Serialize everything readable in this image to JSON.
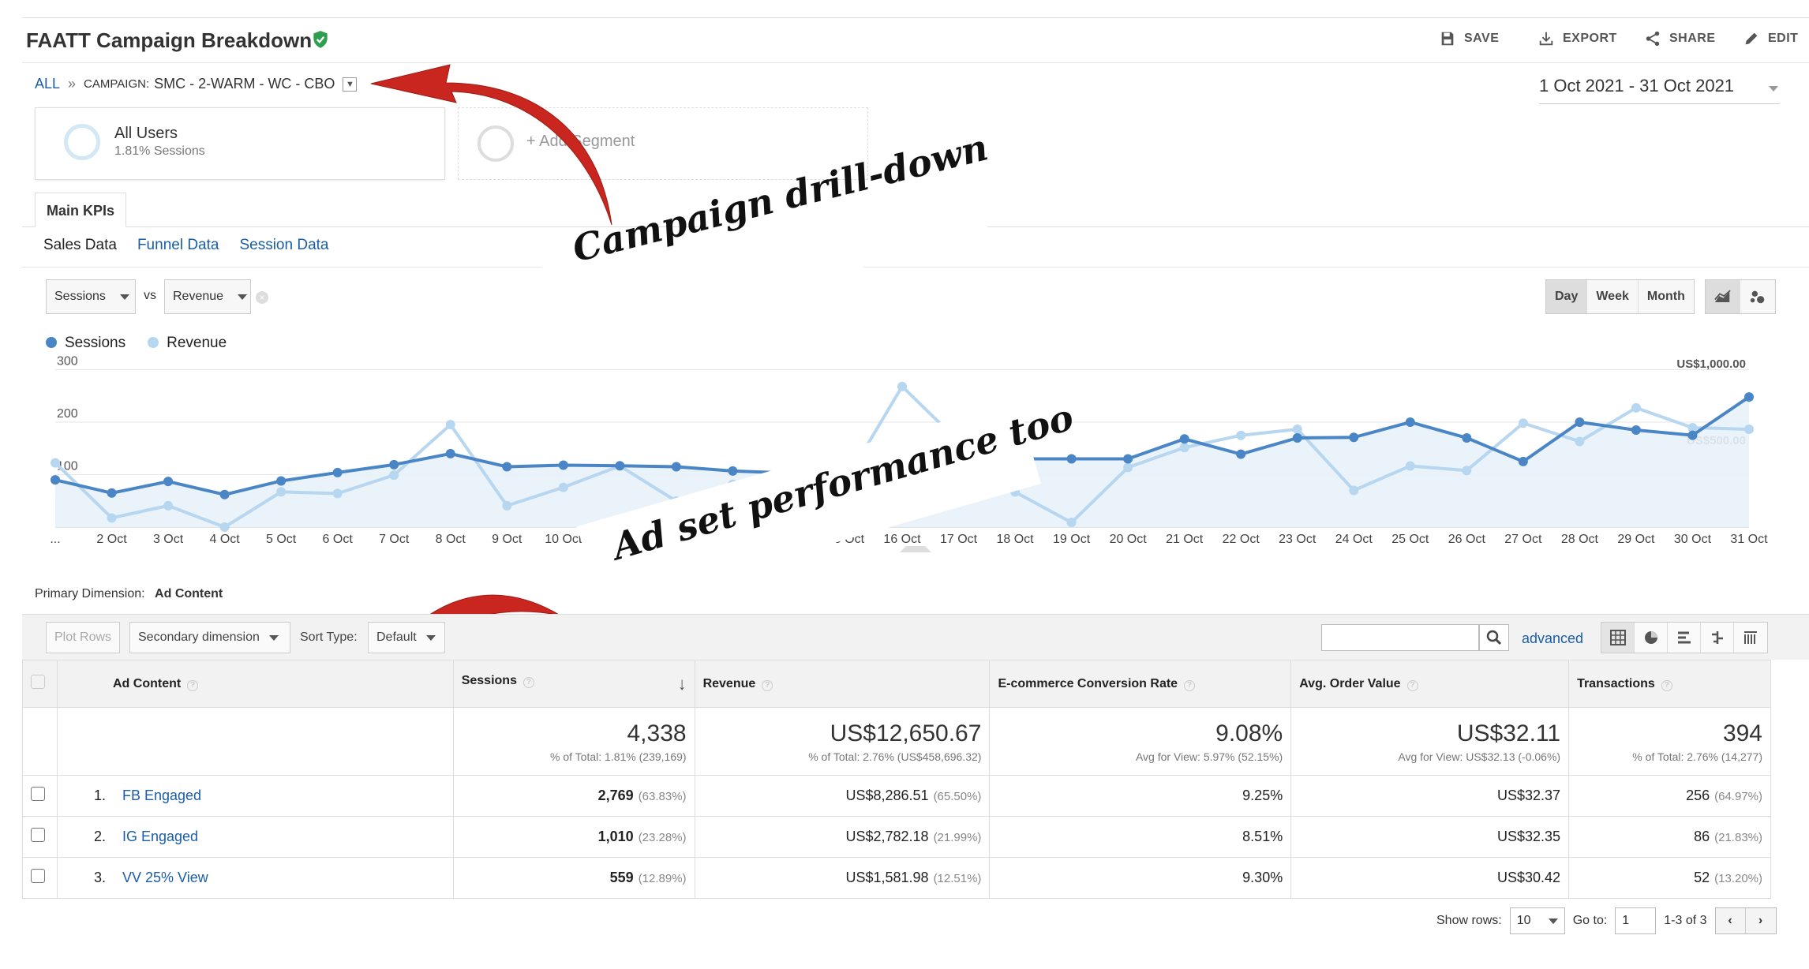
{
  "header": {
    "title": "FAATT Campaign Breakdown",
    "save": "SAVE",
    "export": "EXPORT",
    "share": "SHARE",
    "edit": "EDIT"
  },
  "breadcrumb": {
    "all": "ALL",
    "sep": "»",
    "label": "CAMPAIGN:",
    "value": "SMC - 2-WARM - WC - CBO"
  },
  "date_range": "1 Oct 2021 - 31 Oct 2021",
  "segments": {
    "all_users": "All Users",
    "all_users_sub": "1.81% Sessions",
    "add": "+ Add Segment"
  },
  "tabs": {
    "main": "Main KPIs"
  },
  "subtabs": [
    "Sales Data",
    "Funnel Data",
    "Session Data"
  ],
  "metric_selector": {
    "metric1": "Sessions",
    "vs": "vs",
    "metric2": "Revenue"
  },
  "granularity": [
    "Day",
    "Week",
    "Month"
  ],
  "legend": [
    {
      "name": "Sessions",
      "color": "#4a86c5"
    },
    {
      "name": "Revenue",
      "color": "#b7d6ef"
    }
  ],
  "annotations": {
    "drilldown": "Campaign drill-down",
    "adset": "Ad set performance too"
  },
  "chart_data": {
    "type": "line",
    "x": [
      "...",
      "2 Oct",
      "3 Oct",
      "4 Oct",
      "5 Oct",
      "6 Oct",
      "7 Oct",
      "8 Oct",
      "9 Oct",
      "10 Oct",
      "11 Oct",
      "12 Oct",
      "13 Oct",
      "14 Oct",
      "15 Oct",
      "16 Oct",
      "17 Oct",
      "18 Oct",
      "19 Oct",
      "20 Oct",
      "21 Oct",
      "22 Oct",
      "23 Oct",
      "24 Oct",
      "25 Oct",
      "26 Oct",
      "27 Oct",
      "28 Oct",
      "29 Oct",
      "30 Oct",
      "31 Oct"
    ],
    "y_left_ticks": [
      "300",
      "200",
      "100"
    ],
    "y_right_ticks": [
      "US$1,000.00",
      "US$500.00"
    ],
    "ylim_left": [
      0,
      300
    ],
    "ylim_right": [
      0,
      1000
    ],
    "series": [
      {
        "name": "Sessions",
        "axis": "left",
        "values": [
          90,
          65,
          87,
          62,
          88,
          104,
          119,
          140,
          115,
          118,
          117,
          115,
          107,
          103,
          136,
          165,
          155,
          130,
          130,
          130,
          168,
          139,
          170,
          171,
          200,
          170,
          125,
          200,
          185,
          175,
          248
        ]
      },
      {
        "name": "Revenue",
        "axis": "right",
        "values": [
          420,
          60,
          140,
          -10,
          230,
          220,
          340,
          670,
          140,
          260,
          400,
          170,
          280,
          330,
          300,
          920,
          560,
          230,
          30,
          390,
          520,
          600,
          640,
          240,
          400,
          370,
          680,
          560,
          780,
          650,
          640
        ]
      }
    ]
  },
  "primary_dimension": {
    "label": "Primary Dimension:",
    "value": "Ad Content"
  },
  "toolbar": {
    "plot_rows": "Plot Rows",
    "secondary": "Secondary dimension",
    "sort_type": "Sort Type:",
    "sort_value": "Default",
    "advanced": "advanced"
  },
  "table": {
    "columns": [
      "Ad Content",
      "Sessions",
      "Revenue",
      "E-commerce Conversion Rate",
      "Avg. Order Value",
      "Transactions"
    ],
    "totals": [
      {
        "value": "4,338",
        "sub": "% of Total: 1.81% (239,169)"
      },
      {
        "value": "US$12,650.67",
        "sub": "% of Total: 2.76% (US$458,696.32)"
      },
      {
        "value": "9.08%",
        "sub": "Avg for View: 5.97% (52.15%)"
      },
      {
        "value": "US$32.11",
        "sub": "Avg for View: US$32.13 (-0.06%)"
      },
      {
        "value": "394",
        "sub": "% of Total: 2.76% (14,277)"
      }
    ],
    "rows": [
      {
        "idx": "1.",
        "name": "FB Engaged",
        "sessions": "2,769",
        "sessions_pct": "(63.83%)",
        "revenue": "US$8,286.51",
        "revenue_pct": "(65.50%)",
        "conv": "9.25%",
        "aov": "US$32.37",
        "trans": "256",
        "trans_pct": "(64.97%)"
      },
      {
        "idx": "2.",
        "name": "IG Engaged",
        "sessions": "1,010",
        "sessions_pct": "(23.28%)",
        "revenue": "US$2,782.18",
        "revenue_pct": "(21.99%)",
        "conv": "8.51%",
        "aov": "US$32.35",
        "trans": "86",
        "trans_pct": "(21.83%)"
      },
      {
        "idx": "3.",
        "name": "VV 25% View",
        "sessions": "559",
        "sessions_pct": "(12.89%)",
        "revenue": "US$1,581.98",
        "revenue_pct": "(12.51%)",
        "conv": "9.30%",
        "aov": "US$30.42",
        "trans": "52",
        "trans_pct": "(13.20%)"
      }
    ]
  },
  "pager": {
    "show_rows": "Show rows:",
    "rows_value": "10",
    "goto": "Go to:",
    "goto_value": "1",
    "range": "1-3 of 3"
  }
}
